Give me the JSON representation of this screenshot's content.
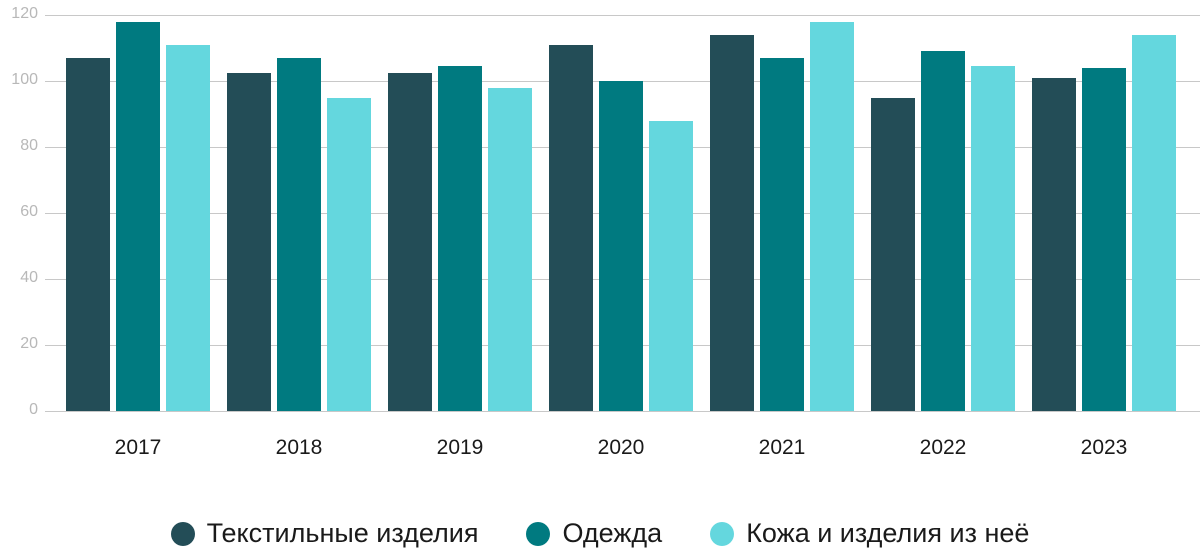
{
  "chart_data": {
    "type": "bar",
    "title": "",
    "xlabel": "",
    "ylabel": "",
    "ylim": [
      0,
      120
    ],
    "yticks": [
      0,
      20,
      40,
      60,
      80,
      100,
      120
    ],
    "grid": true,
    "legend_position": "bottom",
    "categories": [
      "2017",
      "2018",
      "2019",
      "2020",
      "2021",
      "2022",
      "2023"
    ],
    "series": [
      {
        "name": "Текстильные изделия",
        "color": "#234d57",
        "values": [
          107,
          102.5,
          102.5,
          111,
          114,
          95,
          101
        ]
      },
      {
        "name": "Одежда",
        "color": "#007a80",
        "values": [
          118,
          107,
          104.5,
          100,
          107,
          109,
          104
        ]
      },
      {
        "name": "Кожа и изделия из неё",
        "color": "#64d7de",
        "values": [
          111,
          95,
          98,
          88,
          118,
          104.5,
          114
        ]
      }
    ]
  },
  "legend": {
    "items": [
      {
        "label": "Текстильные изделия",
        "color": "#234d57"
      },
      {
        "label": "Одежда",
        "color": "#007a80"
      },
      {
        "label": "Кожа и изделия из неё",
        "color": "#64d7de"
      }
    ]
  }
}
